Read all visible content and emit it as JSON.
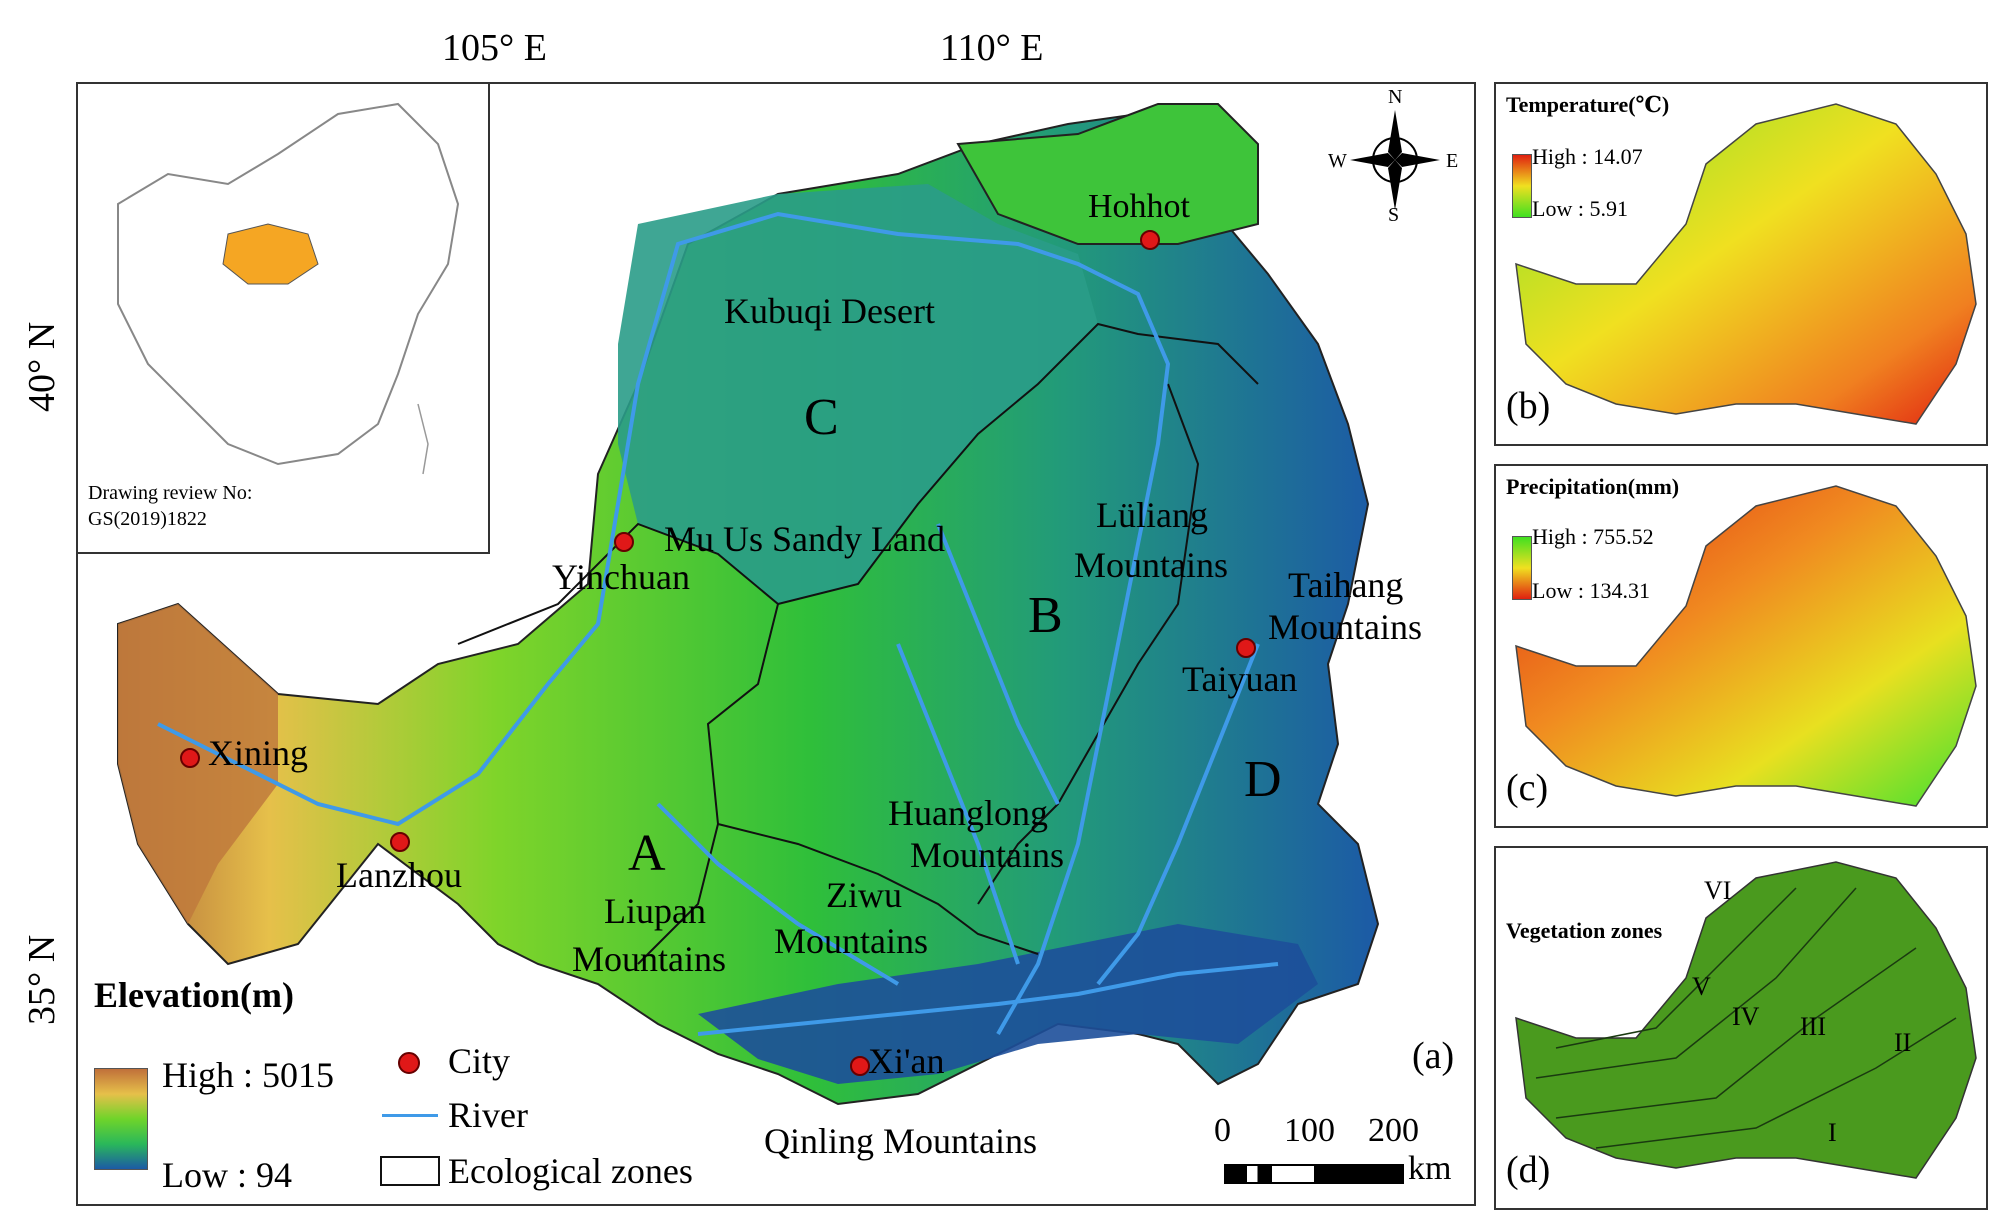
{
  "main_map": {
    "lon_labels": [
      "105° E",
      "110° E"
    ],
    "lat_labels": [
      "40° N",
      "35° N"
    ],
    "panel_tag": "(a)",
    "inset": {
      "note_line1": "Drawing review No:",
      "note_line2": "GS(2019)1822"
    },
    "compass": {
      "n": "N",
      "s": "S",
      "e": "E",
      "w": "W"
    },
    "zones": [
      "A",
      "B",
      "C",
      "D"
    ],
    "places": {
      "hohhot": "Hohhot",
      "kubuqi": "Kubuqi Desert",
      "muus": "Mu Us Sandy Land",
      "yinchuan": "Yinchuan",
      "luliang1": "Lüliang",
      "luliang2": "Mountains",
      "taihang1": "Taihang",
      "taihang2": "Mountains",
      "taiyuan": "Taiyuan",
      "xining": "Xining",
      "lanzhou": "Lanzhou",
      "huanglong1": "Huanglong",
      "huanglong2": "Mountains",
      "liupan1": "Liupan",
      "liupan2": "Mountains",
      "ziwu1": "Ziwu",
      "ziwu2": "Mountains",
      "xian": "Xi'an",
      "qinling": "Qinling Mountains"
    },
    "legend": {
      "title": "Elevation(m)",
      "high": "High : 5015",
      "low": "Low : 94",
      "city": "City",
      "river": "River",
      "eco": "Ecological zones"
    },
    "scale": {
      "ticks": [
        "0",
        "100",
        "200"
      ],
      "unit": "km"
    },
    "colors": {
      "river": "#3f9ae8",
      "city": "#e01818",
      "inset_fill": "#f5a623"
    }
  },
  "panel_b": {
    "title": "Temperature(℃)",
    "high": "High : 14.07",
    "low": "Low : 5.91",
    "tag": "(b)"
  },
  "panel_c": {
    "title": "Precipitation(mm)",
    "high": "High : 755.52",
    "low": "Low : 134.31",
    "tag": "(c)"
  },
  "panel_d": {
    "title": "Vegetation zones",
    "zones": [
      "VI",
      "V",
      "IV",
      "III",
      "II",
      "I"
    ],
    "tag": "(d)"
  }
}
